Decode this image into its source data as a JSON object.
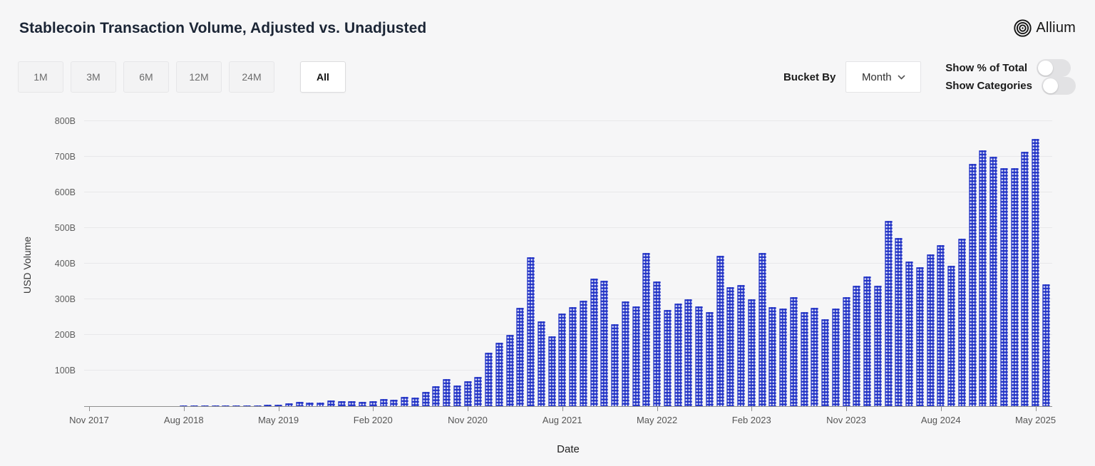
{
  "header": {
    "title": "Stablecoin Transaction Volume, Adjusted vs. Unadjusted",
    "brand": "Allium"
  },
  "toolbar": {
    "range_buttons": [
      "1M",
      "3M",
      "6M",
      "12M",
      "24M",
      "All"
    ],
    "selected_range": "All",
    "bucket_by_label": "Bucket By",
    "bucket_value": "Month",
    "toggles": [
      {
        "label": "Show % of Total",
        "on": false
      },
      {
        "label": "Show Categories",
        "on": false
      }
    ]
  },
  "chart_data": {
    "type": "bar",
    "title": "Stablecoin Transaction Volume, Adjusted vs. Unadjusted",
    "xlabel": "Date",
    "ylabel": "USD Volume",
    "unit": "B",
    "ylim": [
      0,
      800
    ],
    "grid": "horizontal",
    "bar_color": "#2435c6",
    "bar_pattern": "white-dots",
    "y_tick_labels": [
      "100B",
      "200B",
      "300B",
      "400B",
      "500B",
      "600B",
      "700B",
      "800B"
    ],
    "x_tick_labels": [
      "Nov 2017",
      "Aug 2018",
      "May 2019",
      "Feb 2020",
      "Nov 2020",
      "Aug 2021",
      "May 2022",
      "Feb 2023",
      "Nov 2023",
      "Aug 2024",
      "May 2025"
    ],
    "x_tick_every_n_bars": 9,
    "categories": [
      "Nov 2017",
      "Dec 2017",
      "Jan 2018",
      "Feb 2018",
      "Mar 2018",
      "Apr 2018",
      "May 2018",
      "Jun 2018",
      "Jul 2018",
      "Aug 2018",
      "Sep 2018",
      "Oct 2018",
      "Nov 2018",
      "Dec 2018",
      "Jan 2019",
      "Feb 2019",
      "Mar 2019",
      "Apr 2019",
      "May 2019",
      "Jun 2019",
      "Jul 2019",
      "Aug 2019",
      "Sep 2019",
      "Oct 2019",
      "Nov 2019",
      "Dec 2019",
      "Jan 2020",
      "Feb 2020",
      "Mar 2020",
      "Apr 2020",
      "May 2020",
      "Jun 2020",
      "Jul 2020",
      "Aug 2020",
      "Sep 2020",
      "Oct 2020",
      "Nov 2020",
      "Dec 2020",
      "Jan 2021",
      "Feb 2021",
      "Mar 2021",
      "Apr 2021",
      "May 2021",
      "Jun 2021",
      "Jul 2021",
      "Aug 2021",
      "Sep 2021",
      "Oct 2021",
      "Nov 2021",
      "Dec 2021",
      "Jan 2022",
      "Feb 2022",
      "Mar 2022",
      "Apr 2022",
      "May 2022",
      "Jun 2022",
      "Jul 2022",
      "Aug 2022",
      "Sep 2022",
      "Oct 2022",
      "Nov 2022",
      "Dec 2022",
      "Jan 2023",
      "Feb 2023",
      "Mar 2023",
      "Apr 2023",
      "May 2023",
      "Jun 2023",
      "Jul 2023",
      "Aug 2023",
      "Sep 2023",
      "Oct 2023",
      "Nov 2023",
      "Dec 2023",
      "Jan 2024",
      "Feb 2024",
      "Mar 2024",
      "Apr 2024",
      "May 2024",
      "Jun 2024",
      "Jul 2024",
      "Aug 2024",
      "Sep 2024",
      "Oct 2024",
      "Nov 2024",
      "Dec 2024",
      "Jan 2025",
      "Feb 2025",
      "Mar 2025",
      "Apr 2025",
      "May 2025",
      "Jun 2025"
    ],
    "values": [
      0.3,
      0.3,
      0.4,
      0.4,
      0.5,
      0.5,
      0.6,
      0.8,
      1.0,
      1.2,
      1.5,
      1.8,
      2.0,
      2.0,
      2.0,
      2.2,
      2.8,
      3.5,
      5,
      9,
      13,
      11,
      11,
      16,
      15,
      15,
      13,
      15,
      20,
      18,
      26,
      24,
      40,
      57,
      77,
      58,
      71,
      83,
      150,
      178,
      200,
      277,
      419,
      238,
      196,
      261,
      278,
      297,
      358,
      352,
      230,
      295,
      280,
      430,
      350,
      270,
      288,
      300,
      280,
      265,
      423,
      335,
      341,
      300,
      430,
      278,
      275,
      307,
      265,
      277,
      245,
      275,
      307,
      339,
      365,
      338,
      520,
      473,
      407,
      390,
      427,
      453,
      395,
      471,
      680,
      719,
      700,
      668,
      668,
      715,
      750,
      343
    ]
  }
}
